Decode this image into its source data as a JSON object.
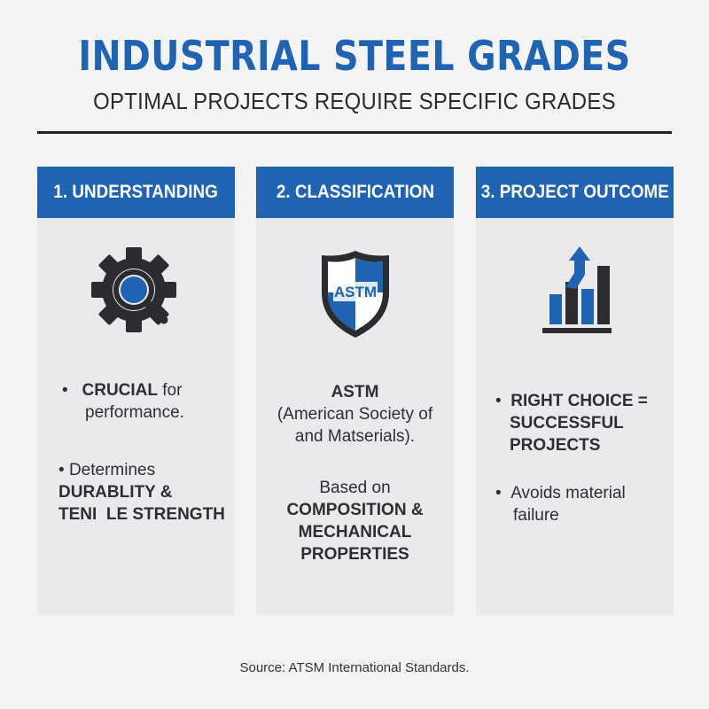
{
  "header": {
    "title": "INDUSTRIAL STEEL GRADES",
    "subtitle": "OPTIMAL PROJECTS REQUIRE SPECIFIC GRADES"
  },
  "columns": [
    {
      "heading": "1. UNDERSTANDING",
      "icon": "gear-magnifier-icon",
      "bullet1": {
        "bold": "CRUCIAL",
        "text": " for",
        "text2": "performance."
      },
      "bullet2": {
        "text": "Determines",
        "bold1": "DURABLITY &",
        "bold2": "TENI  LE STRENGTH"
      }
    },
    {
      "heading": "2. CLASSIFICATION",
      "icon": "shield-icon",
      "shield_label": "ASTM",
      "block1": {
        "bold": "ASTM",
        "line2": "(American Society of",
        "line3": "and Matserials)."
      },
      "block2": {
        "line1": "Based on",
        "bold1": "COMPOSITION &",
        "bold2": "MECHANICAL",
        "bold3": "PROPERTIES"
      }
    },
    {
      "heading": "3. PROJECT OUTCOME",
      "icon": "bar-chart-up-arrow-icon",
      "bullet1": {
        "bold1": "RIGHT CHOICE =",
        "bold2": "SUCCESSFUL",
        "bold3": "PROJECTS"
      },
      "bullet2": {
        "text1": "Avoids material",
        "text2": "failure"
      }
    }
  ],
  "footer": {
    "source": "Source: ATSM International Standards."
  },
  "colors": {
    "accent": "#1f63b5",
    "dark": "#2a2a2e",
    "panel": "#eaeaec"
  }
}
